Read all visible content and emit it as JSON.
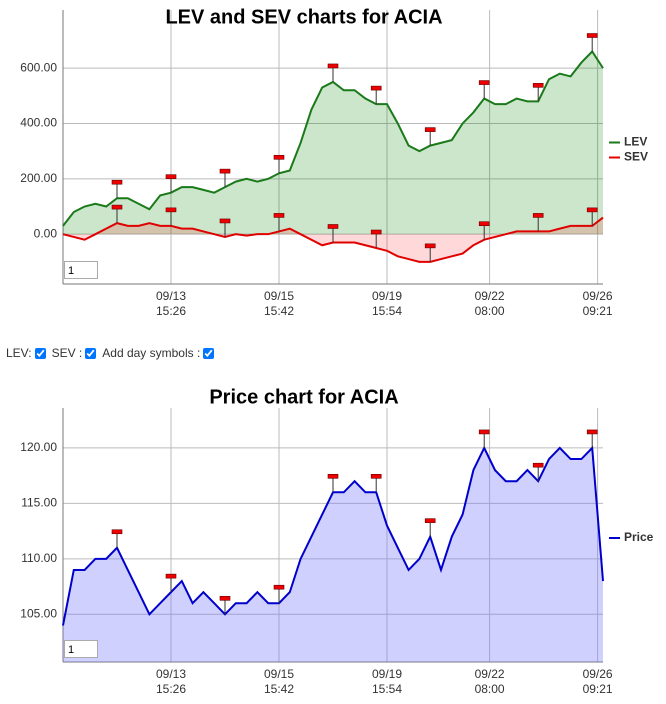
{
  "chart_data": [
    {
      "type": "area",
      "title": "LEV and SEV charts for ACIA",
      "x": [
        0,
        2,
        4,
        6,
        8,
        10,
        12,
        14,
        16,
        18,
        20,
        22,
        24,
        26,
        28,
        30,
        32,
        34,
        36,
        38,
        40,
        42,
        44,
        46,
        48,
        50,
        52,
        54,
        56,
        58,
        60,
        62,
        64,
        66,
        68,
        70,
        72,
        74,
        76,
        78,
        80,
        82,
        84,
        86,
        88,
        90,
        92,
        94,
        96,
        98,
        100
      ],
      "series": [
        {
          "name": "LEV",
          "color": "#1a7a1a",
          "fill": "rgba(0,128,0,0.2)",
          "values": [
            30,
            80,
            100,
            110,
            100,
            130,
            130,
            110,
            90,
            140,
            150,
            170,
            170,
            160,
            150,
            170,
            190,
            200,
            190,
            200,
            220,
            230,
            330,
            450,
            530,
            550,
            520,
            520,
            490,
            470,
            470,
            400,
            320,
            300,
            320,
            330,
            340,
            400,
            440,
            490,
            470,
            470,
            490,
            480,
            480,
            560,
            580,
            570,
            620,
            660,
            600
          ]
        },
        {
          "name": "SEV",
          "color": "#e00000",
          "fill": "rgba(255,0,0,0.15)",
          "values": [
            0,
            -10,
            -20,
            0,
            20,
            40,
            30,
            30,
            40,
            30,
            30,
            20,
            20,
            10,
            0,
            -10,
            0,
            -5,
            0,
            0,
            10,
            20,
            0,
            -20,
            -40,
            -30,
            -30,
            -30,
            -40,
            -50,
            -60,
            -80,
            -90,
            -100,
            -100,
            -90,
            -80,
            -70,
            -40,
            -20,
            -10,
            0,
            10,
            10,
            10,
            10,
            20,
            30,
            30,
            30,
            60
          ]
        }
      ],
      "day_symbols": [
        10,
        20,
        30,
        40,
        50,
        58,
        68,
        78,
        88,
        98
      ],
      "xlim": [
        0,
        100
      ],
      "xticks": [
        {
          "value": 20,
          "label": "09/13\n15:26"
        },
        {
          "value": 40,
          "label": "09/15\n15:42"
        },
        {
          "value": 60,
          "label": "09/19\n15:54"
        },
        {
          "value": 79,
          "label": "09/22\n08:00"
        },
        {
          "value": 99,
          "label": "09/26\n09:21"
        }
      ],
      "ylim": [
        -180,
        810
      ],
      "yticks": [
        {
          "value": 0,
          "label": "0.00"
        },
        {
          "value": 200,
          "label": "200.00"
        },
        {
          "value": 400,
          "label": "400.00"
        },
        {
          "value": 600,
          "label": "600.00"
        }
      ],
      "grid": true
    },
    {
      "type": "area",
      "title": "Price chart for ACIA",
      "x": [
        0,
        2,
        4,
        6,
        8,
        10,
        12,
        14,
        16,
        18,
        20,
        22,
        24,
        26,
        28,
        30,
        32,
        34,
        36,
        38,
        40,
        42,
        44,
        46,
        48,
        50,
        52,
        54,
        56,
        58,
        60,
        62,
        64,
        66,
        68,
        70,
        72,
        74,
        76,
        78,
        80,
        82,
        84,
        86,
        88,
        90,
        92,
        94,
        96,
        98,
        100
      ],
      "series": [
        {
          "name": "Price",
          "color": "#0000cc",
          "fill": "rgba(120,120,255,0.35)",
          "values": [
            104,
            109,
            109,
            110,
            110,
            111,
            109,
            107,
            105,
            106,
            107,
            108,
            106,
            107,
            106,
            105,
            106,
            106,
            107,
            106,
            106,
            107,
            110,
            112,
            114,
            116,
            116,
            117,
            116,
            116,
            113,
            111,
            109,
            110,
            112,
            109,
            112,
            114,
            118,
            120,
            118,
            117,
            117,
            118,
            117,
            119,
            120,
            119,
            119,
            120,
            108
          ]
        }
      ],
      "day_symbols": [
        10,
        20,
        30,
        40,
        50,
        58,
        68,
        78,
        88,
        98
      ],
      "xlim": [
        0,
        100
      ],
      "xticks": [
        {
          "value": 20,
          "label": "09/13\n15:26"
        },
        {
          "value": 40,
          "label": "09/15\n15:42"
        },
        {
          "value": 60,
          "label": "09/19\n15:54"
        },
        {
          "value": 79,
          "label": "09/22\n08:00"
        },
        {
          "value": 99,
          "label": "09/26\n09:21"
        }
      ],
      "ylim": [
        100.7,
        123.6
      ],
      "yticks": [
        {
          "value": 105,
          "label": "105.00"
        },
        {
          "value": 110,
          "label": "110.00"
        },
        {
          "value": 115,
          "label": "115.00"
        },
        {
          "value": 120,
          "label": "120.00"
        }
      ],
      "grid": true
    }
  ],
  "controls": [
    "LEV:",
    "SEV :",
    "Add day symbols :"
  ],
  "inputs": [
    "1",
    "1"
  ]
}
